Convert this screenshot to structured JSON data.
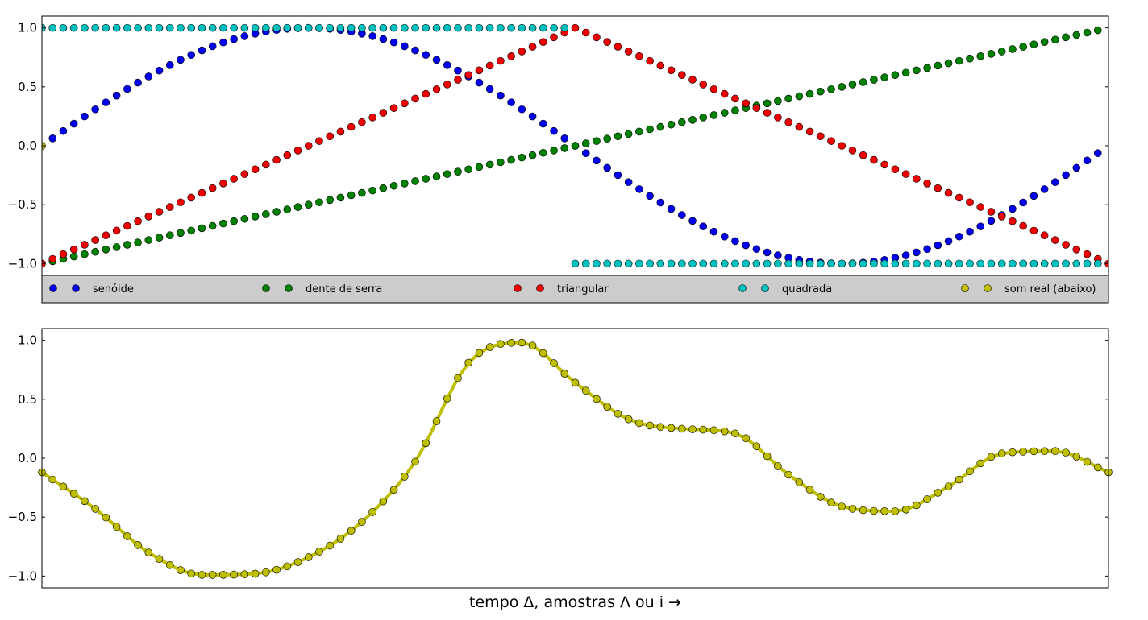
{
  "chart_data": [
    {
      "type": "scatter",
      "title": "",
      "xlabel": "",
      "ylabel": "",
      "xlim": [
        0,
        100
      ],
      "ylim": [
        -1.1,
        1.1
      ],
      "x_ticks_visible": false,
      "yticks": [
        {
          "value": 1.0,
          "label": "1.0"
        },
        {
          "value": 0.5,
          "label": "0.5"
        },
        {
          "value": 0.0,
          "label": "0.0"
        },
        {
          "value": -0.5,
          "label": "−0.5"
        },
        {
          "value": -1.0,
          "label": "−1.0"
        }
      ],
      "legend": {
        "placement": "bottom, below axes, one row",
        "background": "#cccccc",
        "entries": [
          {
            "name": "senóide",
            "color": "#0000ee"
          },
          {
            "name": "dente de serra",
            "color": "#008000"
          },
          {
            "name": "triangular",
            "color": "#ee0000"
          },
          {
            "name": "quadrada",
            "color": "#00bfbf"
          },
          {
            "name": "som real (abaixo)",
            "color": "#bfbf00"
          }
        ]
      },
      "series": [
        {
          "name": "senóide",
          "color": "#0000ee",
          "function": "sin(2*pi*x/100), x = 0..100 step 1, x = 0 and x = 100 not shown"
        },
        {
          "name": "dente de serra",
          "color": "#008000",
          "function": "-1 + 2*x/100, x = 0..99 step 1"
        },
        {
          "name": "triangular",
          "color": "#ee0000",
          "function": "rises from -1 at x=0 to 1 at x=50, falls to -1 at x=100, x = 0..100 step 1"
        },
        {
          "name": "quadrada",
          "color": "#00bfbf",
          "function": "1 for x = 0..49, -1 for x = 50..99, step 1"
        },
        {
          "name": "som real (abaixo)",
          "color": "#bfbf00",
          "x": [
            0
          ],
          "y": [
            0
          ]
        }
      ]
    },
    {
      "type": "line",
      "title": "",
      "xlabel": "tempo Δ, amostras Λ ou i →",
      "ylabel": "",
      "xlim": [
        0,
        100
      ],
      "ylim": [
        -1.1,
        1.1
      ],
      "x_ticks_visible": false,
      "markers": true,
      "yticks": [
        {
          "value": 1.0,
          "label": "1.0"
        },
        {
          "value": 0.5,
          "label": "0.5"
        },
        {
          "value": 0.0,
          "label": "0.0"
        },
        {
          "value": -0.5,
          "label": "−0.5"
        },
        {
          "value": -1.0,
          "label": "−1.0"
        }
      ],
      "series": [
        {
          "name": "som real",
          "color": "#bfbf00",
          "x": [
            0,
            5,
            10,
            15,
            20,
            25,
            30,
            35,
            40,
            45,
            50,
            55,
            60,
            65,
            70,
            75,
            80,
            85,
            90,
            95,
            100
          ],
          "y": [
            -0.12,
            -0.43,
            -0.8,
            -0.99,
            -0.98,
            -0.84,
            -0.54,
            -0.03,
            0.81,
            0.98,
            0.64,
            0.33,
            0.25,
            0.21,
            -0.14,
            -0.41,
            -0.45,
            -0.24,
            0.04,
            0.06,
            -0.12
          ]
        }
      ]
    }
  ]
}
